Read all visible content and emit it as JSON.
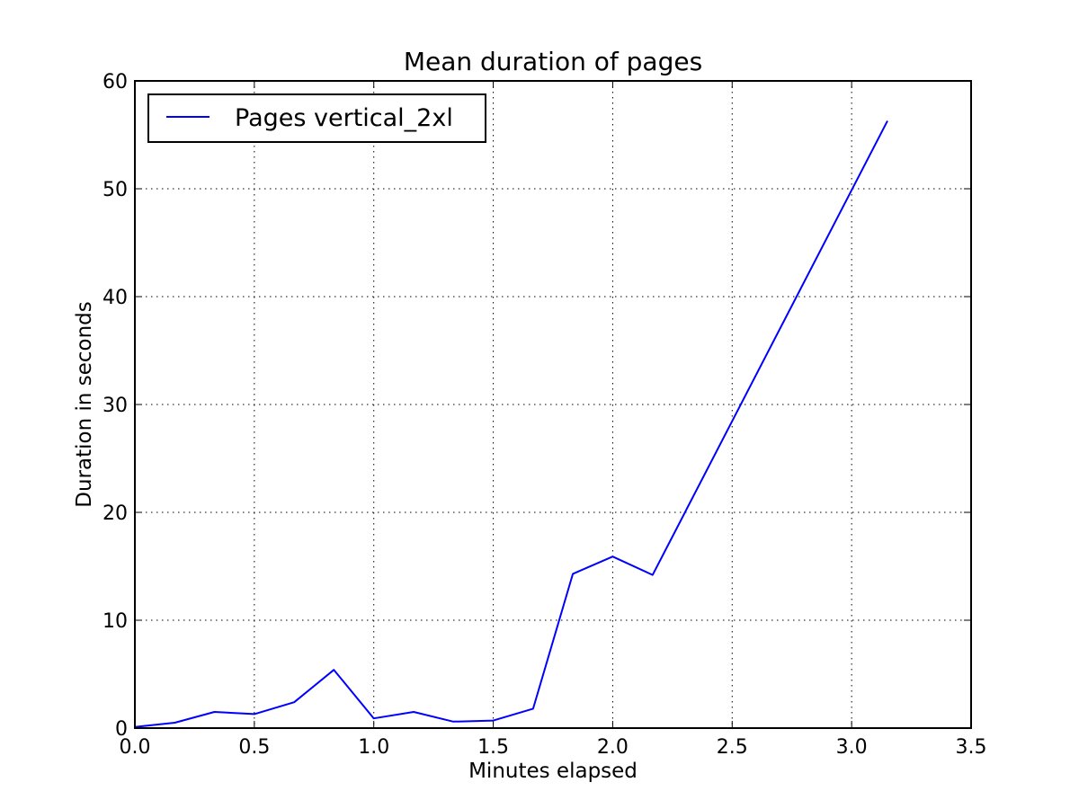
{
  "chart_data": {
    "type": "line",
    "title": "Mean duration of pages",
    "xlabel": "Minutes elapsed",
    "ylabel": "Duration in seconds",
    "xlim": [
      0,
      3.5
    ],
    "ylim": [
      0,
      60
    ],
    "xticks": [
      0.0,
      0.5,
      1.0,
      1.5,
      2.0,
      2.5,
      3.0,
      3.5
    ],
    "xtick_labels": [
      "0.0",
      "0.5",
      "1.0",
      "1.5",
      "2.0",
      "2.5",
      "3.0",
      "3.5"
    ],
    "yticks": [
      0,
      10,
      20,
      30,
      40,
      50,
      60
    ],
    "ytick_labels": [
      "0",
      "10",
      "20",
      "30",
      "40",
      "50",
      "60"
    ],
    "grid": true,
    "legend_position": "top-left",
    "series": [
      {
        "name": "Pages vertical_2xl",
        "color": "#0000ff",
        "x": [
          0.0,
          0.167,
          0.333,
          0.5,
          0.667,
          0.833,
          1.0,
          1.167,
          1.333,
          1.5,
          1.667,
          1.833,
          2.0,
          2.167,
          3.15
        ],
        "y": [
          0.1,
          0.5,
          1.5,
          1.3,
          2.4,
          5.4,
          0.9,
          1.5,
          0.6,
          0.7,
          1.8,
          14.3,
          15.9,
          14.2,
          56.3
        ]
      }
    ]
  }
}
